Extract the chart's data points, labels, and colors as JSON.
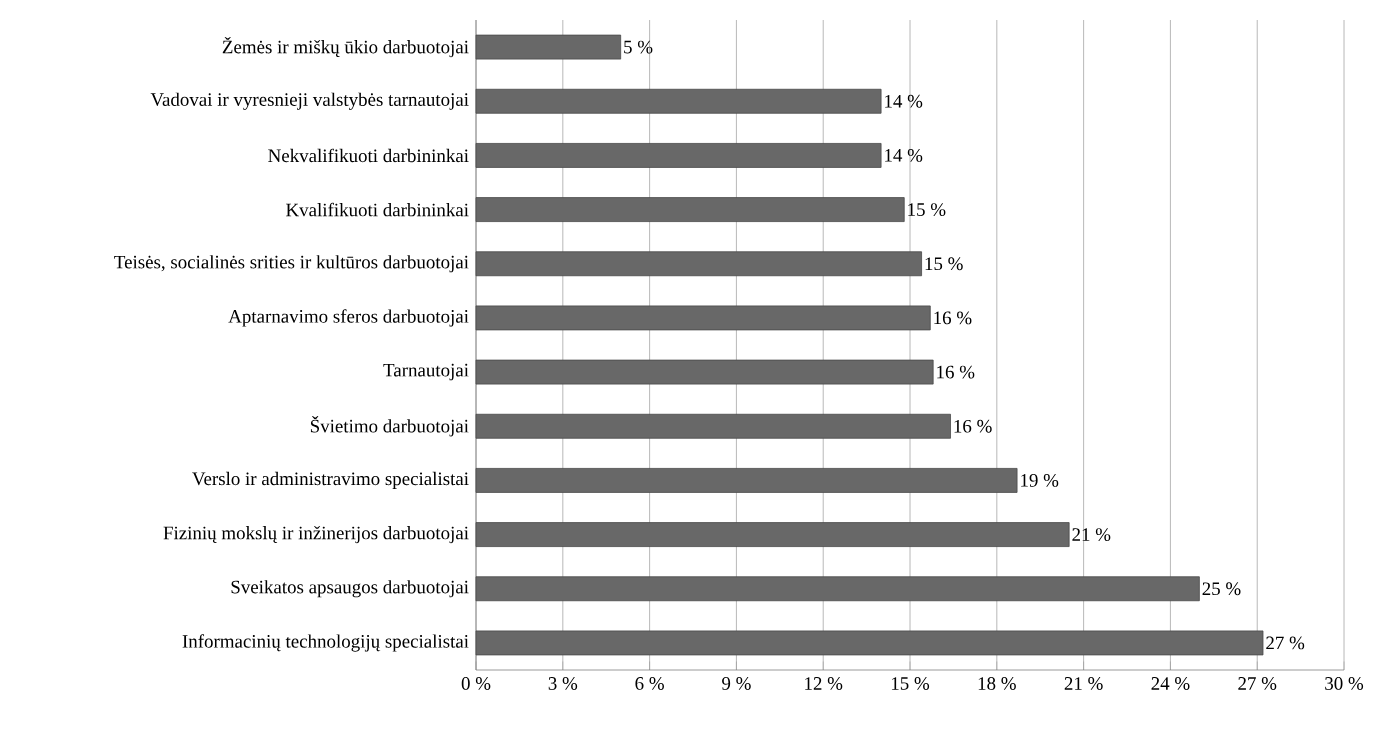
{
  "chart_data": {
    "type": "bar",
    "orientation": "horizontal",
    "categories": [
      "Žemės ir miškų ūkio darbuotojai",
      "Vadovai ir vyresnieji valstybės tarnautojai",
      "Nekvalifikuoti darbininkai",
      "Kvalifikuoti darbininkai",
      "Teisės, socialinės srities ir kultūros darbuotojai",
      "Aptarnavimo sferos darbuotojai",
      "Tarnautojai",
      "Švietimo darbuotojai",
      "Verslo ir administravimo specialistai",
      "Fizinių mokslų ir inžinerijos darbuotojai",
      "Sveikatos apsaugos darbuotojai",
      "Informacinių technologijų specialistai"
    ],
    "values": [
      5,
      14,
      14,
      14.8,
      15.4,
      15.7,
      15.8,
      16.4,
      18.7,
      20.5,
      25,
      27.2
    ],
    "value_labels": [
      "5 %",
      "14 %",
      "14 %",
      "15 %",
      "15 %",
      "16 %",
      "16 %",
      "16 %",
      "19 %",
      "21 %",
      "25 %",
      "27 %"
    ],
    "color": "#686868",
    "xlim": [
      0,
      30
    ],
    "xticks": [
      {
        "value": 0,
        "label": "0 %"
      },
      {
        "value": 3,
        "label": "3 %"
      },
      {
        "value": 6,
        "label": "6 %"
      },
      {
        "value": 9,
        "label": "9 %"
      },
      {
        "value": 12,
        "label": "12 %"
      },
      {
        "value": 15,
        "label": "15 %"
      },
      {
        "value": 18,
        "label": "18 %"
      },
      {
        "value": 21,
        "label": "21 %"
      },
      {
        "value": 24,
        "label": "24 %"
      },
      {
        "value": 27,
        "label": "27 %"
      },
      {
        "value": 30,
        "label": "30 %"
      }
    ],
    "grid": "x"
  }
}
